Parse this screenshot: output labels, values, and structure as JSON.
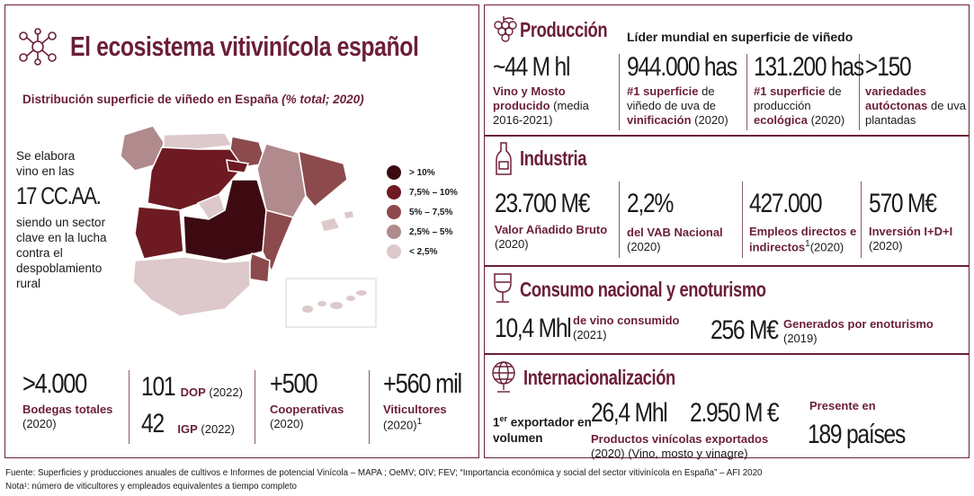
{
  "left": {
    "title": "El ecosistema vitivinícola español",
    "map_title": "Distribución superficie de viñedo en España",
    "map_title_italic": "(% total; 2020)",
    "intro_line1": "Se elabora",
    "intro_line2": "vino en las",
    "intro_big": "17 CC.AA.",
    "intro_rest": "siendo un sector clave en la lucha contra el despoblamiento rural",
    "legend": [
      {
        "label": "> 10%",
        "color": "#3d0a12"
      },
      {
        "label": "7,5% – 10%",
        "color": "#6e1a22"
      },
      {
        "label": "5% – 7,5%",
        "color": "#8c4a4c"
      },
      {
        "label": "2,5% – 5%",
        "color": "#b08a8c"
      },
      {
        "label": "< 2,5%",
        "color": "#ddc9cb"
      }
    ],
    "stats": {
      "bodegas_value": ">4.000",
      "bodegas_label": "Bodegas totales",
      "bodegas_year": "(2020)",
      "dop_value": "101",
      "dop_label": "DOP",
      "dop_year": "(2022)",
      "igp_value": "42",
      "igp_label": "IGP",
      "igp_year": "(2022)",
      "coop_value": "+500",
      "coop_label": "Cooperativas",
      "coop_year": "(2020)",
      "viti_value": "+560 mil",
      "viti_label": "Viticultores",
      "viti_year": "(2020)",
      "viti_sup": "1"
    }
  },
  "produccion": {
    "title": "Producción",
    "subtitle": "Líder mundial en superficie de viñedo",
    "items": [
      {
        "value": "~44 M hl",
        "bold": "Vino y Mosto producido",
        "rest": "(media 2016-2021)"
      },
      {
        "value": "944.000 has",
        "bold": "#1 superficie",
        "rest": "de viñedo de uva de",
        "bold2": "vinificación",
        "rest2": "(2020)"
      },
      {
        "value": "131.200 has",
        "bold": "#1 superficie",
        "rest": "de producción",
        "bold2": "ecológica",
        "rest2": "(2020)"
      },
      {
        "value": ">150",
        "bold": "variedades autóctonas",
        "rest": "de uva plantadas"
      }
    ]
  },
  "industria": {
    "title": "Industria",
    "items": [
      {
        "value": "23.700 M€",
        "bold": "Valor Añadido Bruto",
        "rest": "(2020)"
      },
      {
        "value": "2,2%",
        "bold": "del VAB Nacional",
        "rest": "(2020)"
      },
      {
        "value": "427.000",
        "bold": "Empleos directos e indirectos",
        "sup": "1",
        "rest": "(2020)"
      },
      {
        "value": "570 M€",
        "bold": "Inversión I+D+I",
        "rest": "(2020)"
      }
    ]
  },
  "consumo": {
    "title": "Consumo nacional y enoturismo",
    "v1": "10,4 Mhl",
    "b1": "de vino consumido",
    "r1": "(2021)",
    "v2": "256 M€",
    "b2": "Generados por enoturismo",
    "r2": "(2019)"
  },
  "internacional": {
    "title": "Internacionalización",
    "exporter_num": "1",
    "exporter_sup": "er",
    "exporter_rest": "exportador en volumen",
    "v1": "26,4 Mhl",
    "v2": "2.950 M €",
    "products_bold": "Productos vinícolas exportados",
    "products_rest": "(2020) (Vino, mosto y vinagre)",
    "present_label": "Presente en",
    "present_value": "189 países"
  },
  "footer": {
    "source": "Fuente: Superficies y producciones anuales de cultivos e Informes de potencial Vinícola – MAPA ; OeMV; OIV; FEV; “Importancia económica y social del sector vitivinícola en España” – AFI 2020",
    "note": "Nota¹: número de viticultores y empleados equivalentes a tiempo completo"
  }
}
